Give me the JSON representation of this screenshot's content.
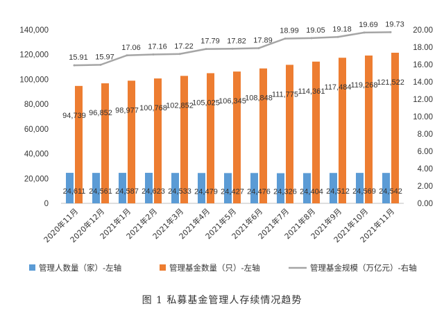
{
  "caption": "图 1 私募基金管理人存续情况趋势",
  "chart_data": {
    "type": "bar",
    "categories": [
      "2020年11月",
      "2020年12月",
      "2021年1月",
      "2021年2月",
      "2021年3月",
      "2021年4月",
      "2021年5月",
      "2021年6月",
      "2021年7月",
      "2021年8月",
      "2021年9月",
      "2021年10月",
      "2021年11月"
    ],
    "series": [
      {
        "name": "管理人数量（家）-左轴",
        "type": "bar",
        "axis": "left",
        "color": "#5b9bd5",
        "values": [
          24611,
          24561,
          24587,
          24623,
          24533,
          24479,
          24427,
          24476,
          24326,
          24404,
          24512,
          24569,
          24542
        ],
        "labels": [
          "24,611",
          "24,561",
          "24,587",
          "24,623",
          "24,533",
          "24,479",
          "24,427",
          "24,476",
          "24,326",
          "24,404",
          "24,512",
          "24,569",
          "24,542"
        ]
      },
      {
        "name": "管理基金数量（只）-左轴",
        "type": "bar",
        "axis": "left",
        "color": "#ed7d31",
        "values": [
          94739,
          96852,
          98977,
          100768,
          102852,
          105025,
          106345,
          108848,
          111775,
          114361,
          117484,
          119268,
          121522
        ],
        "labels": [
          "94,739",
          "96,852",
          "98,977",
          "100,768",
          "102,852",
          "105,025",
          "106,345",
          "108,848",
          "111,775",
          "114,361",
          "117,484",
          "119,268",
          "121,522"
        ]
      },
      {
        "name": "管理基金规模（万亿元）-右轴",
        "type": "line",
        "axis": "right",
        "color": "#a5a5a5",
        "values": [
          15.91,
          15.97,
          17.06,
          17.16,
          17.22,
          17.79,
          17.82,
          17.89,
          18.99,
          19.05,
          19.18,
          19.69,
          19.73
        ],
        "labels": [
          "15.91",
          "15.97",
          "17.06",
          "17.16",
          "17.22",
          "17.79",
          "17.82",
          "17.89",
          "18.99",
          "19.05",
          "19.18",
          "19.69",
          "19.73"
        ]
      }
    ],
    "y_left": {
      "ylim": [
        0,
        140000
      ],
      "ticks": [
        "0",
        "20,000",
        "40,000",
        "60,000",
        "80,000",
        "100,000",
        "120,000",
        "140,000"
      ]
    },
    "y_right": {
      "ylim": [
        0,
        20
      ],
      "ticks": [
        "0.00",
        "2.00",
        "4.00",
        "6.00",
        "8.00",
        "10.00",
        "12.00",
        "14.00",
        "16.00",
        "18.00",
        "20.00"
      ]
    },
    "legend_position": "bottom",
    "grid": false
  }
}
